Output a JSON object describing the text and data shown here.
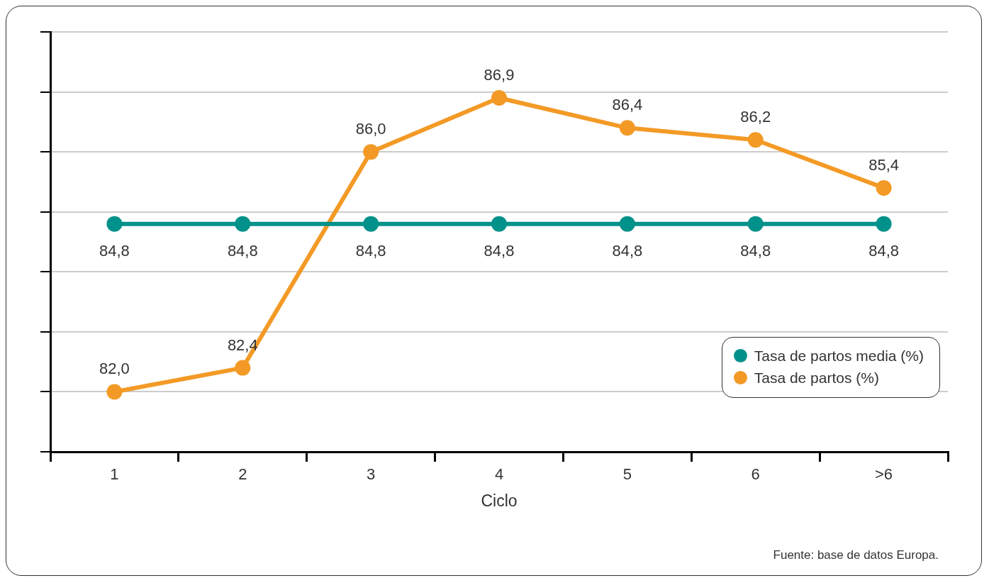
{
  "chart_data": {
    "type": "line",
    "categories": [
      "1",
      "2",
      "3",
      "4",
      "5",
      "6",
      ">6"
    ],
    "series": [
      {
        "name": "Tasa de partos media (%)",
        "color": "#00918a",
        "values": [
          84.8,
          84.8,
          84.8,
          84.8,
          84.8,
          84.8,
          84.8
        ],
        "value_labels": [
          "84,8",
          "84,8",
          "84,8",
          "84,8",
          "84,8",
          "84,8",
          "84,8"
        ]
      },
      {
        "name": "Tasa de partos (%)",
        "color": "#f39a26",
        "values": [
          82.0,
          82.4,
          86.0,
          86.9,
          86.4,
          86.2,
          85.4
        ],
        "value_labels": [
          "82,0",
          "82,4",
          "86,0",
          "86,9",
          "86,4",
          "86,2",
          "85,4"
        ]
      }
    ],
    "xlabel": "Ciclo",
    "tick_labels": "x",
    "grid": "y",
    "legend": "bottom right",
    "marker": "circle",
    "line_style": "solid",
    "annotations": [
      "Fuente: base de datos Europa."
    ]
  }
}
